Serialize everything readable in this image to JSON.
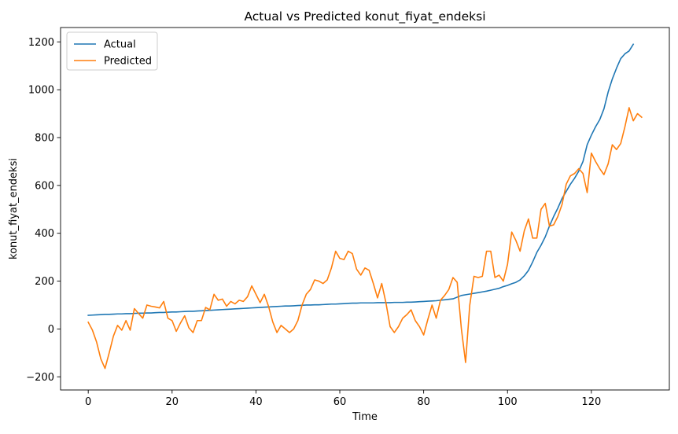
{
  "chart_data": {
    "type": "line",
    "title": "Actual vs Predicted konut_fiyat_endeksi",
    "xlabel": "Time",
    "ylabel": "konut_fiyat_endeksi",
    "xlim": [
      -6.6,
      138.6
    ],
    "ylim": [
      -255,
      1260
    ],
    "xticks": [
      0,
      20,
      40,
      60,
      80,
      100,
      120
    ],
    "yticks": [
      -200,
      0,
      200,
      400,
      600,
      800,
      1000,
      1200
    ],
    "ytick_labels": [
      "−200",
      "0",
      "200",
      "400",
      "600",
      "800",
      "1000",
      "1200"
    ],
    "grid": false,
    "legend": "top-left",
    "series": [
      {
        "name": "Actual",
        "color": "#1f77b4",
        "values": [
          57,
          58,
          59,
          60,
          61,
          61,
          62,
          63,
          63,
          64,
          64,
          65,
          66,
          66,
          67,
          67,
          68,
          69,
          69,
          70,
          71,
          71,
          72,
          73,
          74,
          74,
          75,
          76,
          77,
          78,
          79,
          80,
          81,
          82,
          83,
          84,
          85,
          86,
          87,
          88,
          89,
          90,
          91,
          92,
          93,
          94,
          95,
          96,
          96,
          97,
          98,
          99,
          100,
          100,
          101,
          101,
          102,
          103,
          104,
          104,
          105,
          106,
          107,
          108,
          108,
          109,
          109,
          109,
          109,
          110,
          110,
          110,
          110,
          111,
          111,
          111,
          112,
          112,
          113,
          114,
          115,
          116,
          117,
          118,
          120,
          122,
          124,
          126,
          133,
          140,
          143,
          146,
          149,
          152,
          155,
          158,
          162,
          166,
          170,
          177,
          182,
          189,
          195,
          205,
          222,
          245,
          280,
          320,
          350,
          385,
          430,
          470,
          505,
          545,
          575,
          605,
          630,
          660,
          700,
          770,
          810,
          845,
          875,
          920,
          990,
          1045,
          1090,
          1130,
          1150,
          1162,
          1190
        ],
        "x_start": 0
      },
      {
        "name": "Predicted",
        "color": "#ff7f0e",
        "values": [
          28,
          -5,
          -55,
          -125,
          -165,
          -100,
          -30,
          15,
          -5,
          35,
          -5,
          85,
          65,
          45,
          100,
          95,
          92,
          88,
          115,
          45,
          35,
          -10,
          25,
          55,
          5,
          -15,
          35,
          35,
          90,
          80,
          145,
          120,
          125,
          95,
          115,
          105,
          120,
          115,
          135,
          180,
          145,
          110,
          145,
          95,
          30,
          -15,
          15,
          0,
          -15,
          0,
          35,
          100,
          145,
          165,
          205,
          200,
          190,
          205,
          255,
          325,
          295,
          290,
          325,
          315,
          250,
          225,
          255,
          245,
          190,
          130,
          190,
          110,
          10,
          -15,
          10,
          45,
          60,
          80,
          35,
          10,
          -25,
          40,
          100,
          45,
          120,
          140,
          165,
          215,
          195,
          0,
          -140,
          100,
          220,
          215,
          220,
          325,
          325,
          215,
          225,
          200,
          270,
          405,
          370,
          325,
          410,
          460,
          380,
          380,
          500,
          525,
          430,
          435,
          470,
          520,
          605,
          640,
          650,
          670,
          650,
          570,
          735,
          700,
          670,
          645,
          690,
          770,
          750,
          775,
          845,
          925,
          870,
          900,
          885
        ],
        "x_start": 0
      }
    ]
  }
}
